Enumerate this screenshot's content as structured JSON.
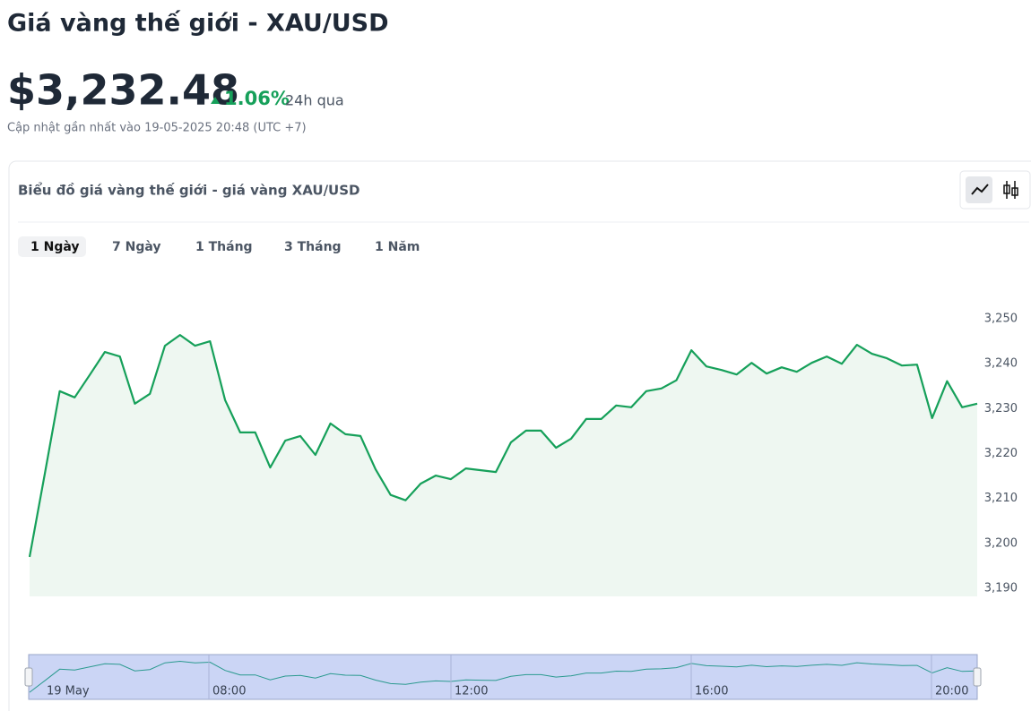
{
  "header": {
    "title": "Giá vàng thế giới - XAU/USD",
    "price": "$3,232.48",
    "change": "1.06%",
    "period": "24h qua",
    "updated": "Cập nhật gần nhất vào 19-05-2025 20:48 (UTC +7)"
  },
  "card": {
    "title": "Biểu đồ giá vàng thế giới - giá vàng XAU/USD",
    "tabs": [
      "1 Ngày",
      "7 Ngày",
      "1 Tháng",
      "3 Tháng",
      "1 Năm"
    ]
  },
  "chart_data": {
    "type": "line",
    "color": "#16a05a",
    "values": [
      3197.0,
      3215.3,
      3233.9,
      3232.5,
      3237.5,
      3242.6,
      3241.6,
      3231.1,
      3233.3,
      3244.0,
      3246.4,
      3244.0,
      3245.0,
      3231.9,
      3224.7,
      3224.7,
      3216.9,
      3222.9,
      3223.9,
      3219.7,
      3226.7,
      3224.3,
      3223.9,
      3216.5,
      3210.8,
      3209.6,
      3213.3,
      3215.1,
      3214.3,
      3216.7,
      3216.3,
      3215.9,
      3222.5,
      3225.1,
      3225.1,
      3221.3,
      3223.3,
      3227.7,
      3227.7,
      3230.7,
      3230.3,
      3233.9,
      3234.5,
      3236.3,
      3243.0,
      3239.4,
      3238.6,
      3237.6,
      3240.2,
      3237.8,
      3239.2,
      3238.2,
      3240.2,
      3241.6,
      3240.0,
      3244.2,
      3242.2,
      3241.2,
      3239.6,
      3239.8,
      3227.9,
      3236.1,
      3230.3,
      3231.1
    ],
    "ylim": [
      3190,
      3250
    ],
    "yticks": [
      {
        "value": 3190,
        "label": "3,190"
      },
      {
        "value": 3200,
        "label": "3,200"
      },
      {
        "value": 3210,
        "label": "3,210"
      },
      {
        "value": 3220,
        "label": "3,220"
      },
      {
        "value": 3230,
        "label": "3,230"
      },
      {
        "value": 3240,
        "label": "3,240"
      },
      {
        "value": 3250,
        "label": "3,250"
      }
    ],
    "navigator_labels": [
      "19 May",
      "08:00",
      "12:00",
      "16:00",
      "20:00"
    ]
  }
}
